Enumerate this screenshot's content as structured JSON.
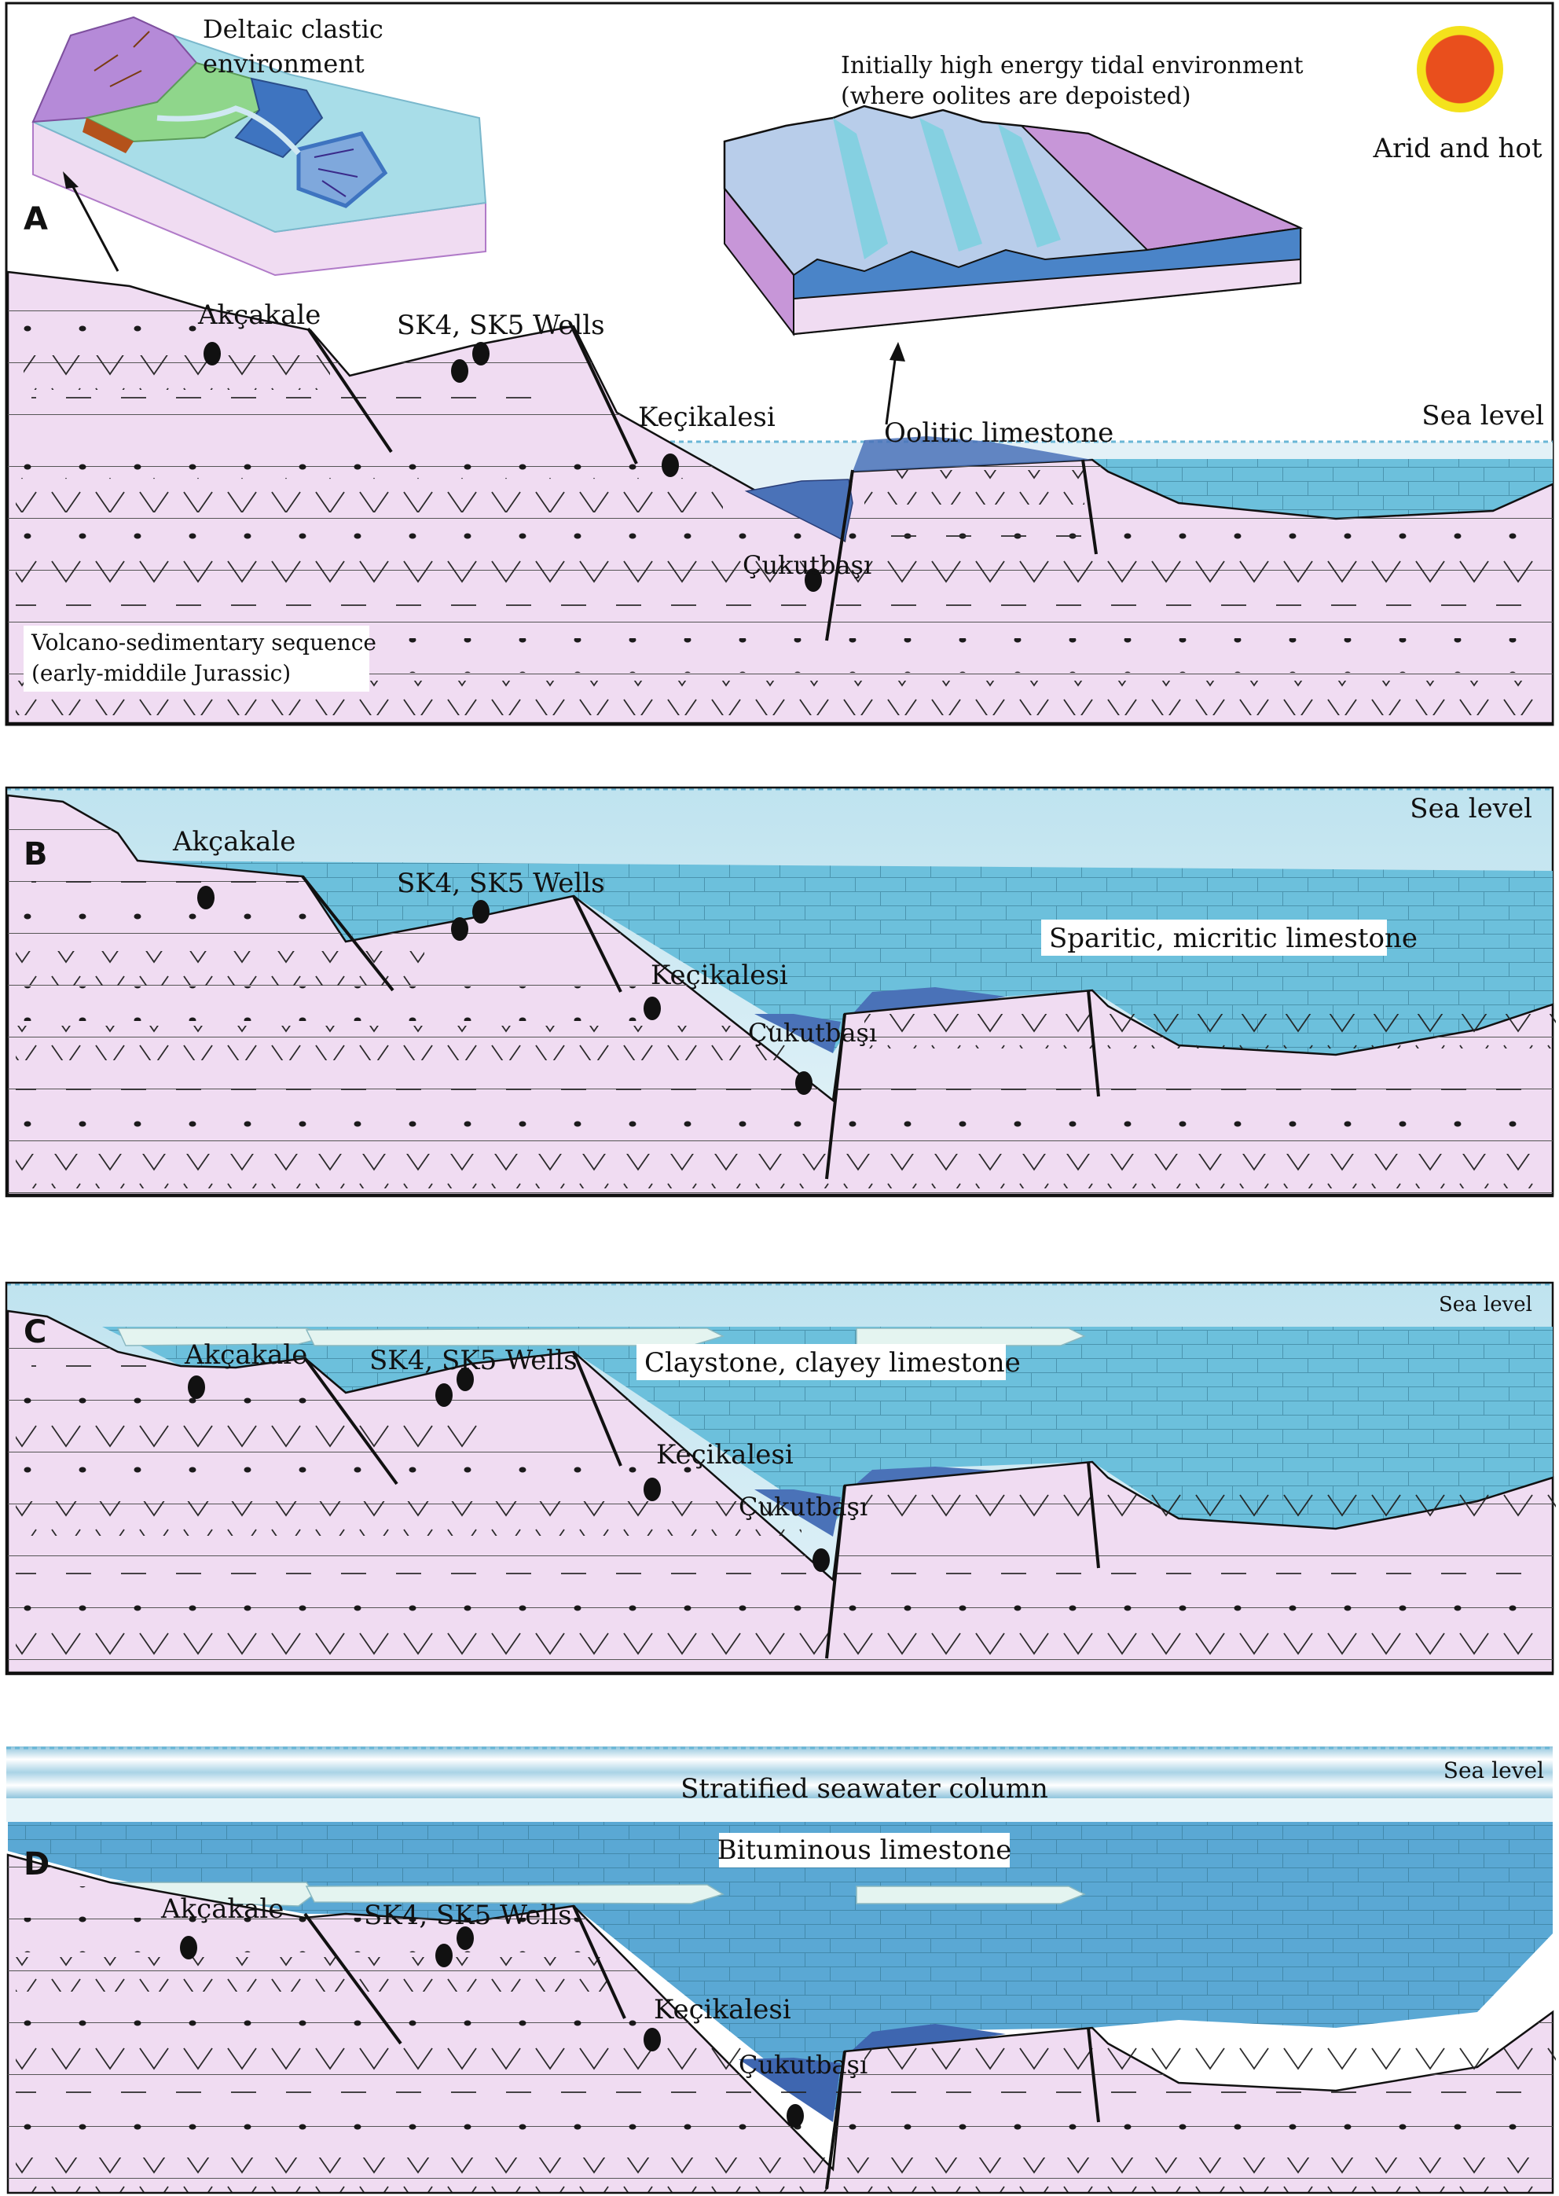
{
  "colors": {
    "basement": "#f0dcf2",
    "limestone": "#6cc0dc",
    "oolite": "#4a72b8",
    "sea": "#d9eef5",
    "dark_limestone": "#5aa8d4",
    "claystone": "#e4f4f0",
    "sun_core": "#e94f1d",
    "sun_ring": "#f4e21c"
  },
  "panel_a": {
    "letter": "A",
    "deltaic_line1": "Deltaic  clastic",
    "deltaic_line2": "environment",
    "tidal_line1": "Initially high energy tidal environment",
    "tidal_line2": "(where oolites are depoisted)",
    "climate": "Arid and hot",
    "akcakale": "Akçakale",
    "wells": "SK4, SK5 Wells",
    "kecikalesi": "Keçikalesi",
    "cukutbasi": "Çukutbaşı",
    "oolitic": "Oolitic limestone",
    "sea_level": "Sea level",
    "volcano_line1": "Volcano-sedimentary sequence",
    "volcano_line2": "(early-middile Jurassic)"
  },
  "panel_b": {
    "letter": "B",
    "akcakale": "Akçakale",
    "wells": "SK4, SK5 Wells",
    "kecikalesi": "Keçikalesi",
    "cukutbasi": "Çukutbaşı",
    "sparitic": "Sparitic, micritic limestone",
    "sea_level": "Sea level"
  },
  "panel_c": {
    "letter": "C",
    "akcakale": "Akçakale",
    "wells": "SK4, SK5 Wells",
    "kecikalesi": "Keçikalesi",
    "cukutbasi": "Çukutbaşı",
    "claystone": "Claystone, clayey limestone",
    "sea_level": "Sea level"
  },
  "panel_d": {
    "letter": "D",
    "akcakale": "Akçakale",
    "wells": "SK4, SK5 Wells",
    "kecikalesi": "Keçikalesi",
    "cukutbasi": "Çukutbaşı",
    "stratified": "Stratified seawater column",
    "bituminous": "Bituminous limestone",
    "sea_level": "Sea level"
  }
}
